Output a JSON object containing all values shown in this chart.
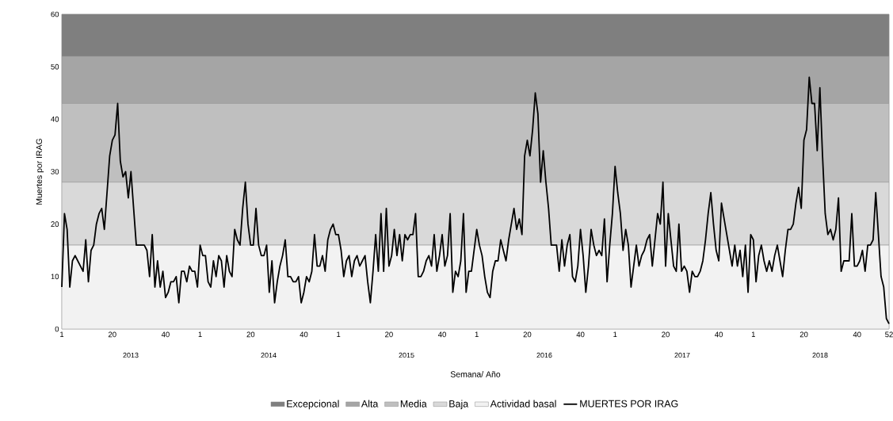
{
  "chart_data": {
    "type": "line",
    "xlabel": "Semana/ Año",
    "ylabel": "Muertes por IRAG",
    "categories": [
      "1",
      null,
      null,
      null,
      null,
      null,
      null,
      null,
      null,
      null,
      null,
      null,
      null,
      null,
      null,
      null,
      null,
      null,
      null,
      "20",
      null,
      null,
      null,
      null,
      null,
      null,
      null,
      null,
      null,
      null,
      null,
      null,
      null,
      null,
      null,
      null,
      null,
      null,
      null,
      "40",
      null,
      null,
      null,
      null,
      null,
      null,
      null,
      null,
      null,
      null,
      null,
      null,
      "1",
      null,
      null,
      null,
      null,
      null,
      null,
      null,
      null,
      null,
      null,
      null,
      null,
      null,
      null,
      null,
      null,
      null,
      null,
      "20",
      null,
      null,
      null,
      null,
      null,
      null,
      null,
      null,
      null,
      null,
      null,
      null,
      null,
      null,
      null,
      null,
      null,
      null,
      null,
      "40",
      null,
      null,
      null,
      null,
      null,
      null,
      null,
      null,
      null,
      null,
      null,
      null,
      "1",
      null,
      null,
      null,
      null,
      null,
      null,
      null,
      null,
      null,
      null,
      null,
      null,
      null,
      null,
      null,
      null,
      null,
      null,
      "20",
      null,
      null,
      null,
      null,
      null,
      null,
      null,
      null,
      null,
      null,
      null,
      null,
      null,
      null,
      null,
      null,
      null,
      null,
      null,
      "40",
      null,
      null,
      null,
      null,
      null,
      null,
      null,
      null,
      null,
      null,
      null,
      null,
      "1",
      null,
      null,
      null,
      null,
      null,
      null,
      null,
      null,
      null,
      null,
      null,
      null,
      null,
      null,
      null,
      null,
      null,
      null,
      "20",
      null,
      null,
      null,
      null,
      null,
      null,
      null,
      null,
      null,
      null,
      null,
      null,
      null,
      null,
      null,
      null,
      null,
      null,
      null,
      "40",
      null,
      null,
      null,
      null,
      null,
      null,
      null,
      null,
      null,
      null,
      null,
      null,
      "1",
      null,
      null,
      null,
      null,
      null,
      null,
      null,
      null,
      null,
      null,
      null,
      null,
      null,
      null,
      null,
      null,
      null,
      null,
      "20",
      null,
      null,
      null,
      null,
      null,
      null,
      null,
      null,
      null,
      null,
      null,
      null,
      null,
      null,
      null,
      null,
      null,
      null,
      null,
      "40",
      null,
      null,
      null,
      null,
      null,
      null,
      null,
      null,
      null,
      null,
      null,
      null,
      "1",
      null,
      null,
      null,
      null,
      null,
      null,
      null,
      null,
      null,
      null,
      null,
      null,
      null,
      null,
      null,
      null,
      null,
      null,
      "20",
      null,
      null,
      null,
      null,
      null,
      null,
      null,
      null,
      null,
      null,
      null,
      null,
      null,
      null,
      null,
      null,
      null,
      null,
      null,
      "40",
      null,
      null,
      null,
      null,
      null,
      null,
      null,
      null,
      null,
      null,
      null,
      "52"
    ],
    "series": [
      {
        "name": "MUERTES POR IRAG",
        "color": "#000000",
        "values": [
          8,
          22,
          19,
          8,
          13,
          14,
          13,
          12,
          11,
          17,
          9,
          15,
          16,
          20,
          22,
          23,
          19,
          26,
          33,
          36,
          37,
          43,
          32,
          29,
          30,
          25,
          30,
          23,
          16,
          16,
          16,
          16,
          15,
          10,
          18,
          8,
          13,
          8,
          11,
          6,
          7,
          9,
          9,
          10,
          5,
          11,
          11,
          9,
          12,
          11,
          11,
          8,
          16,
          14,
          14,
          9,
          8,
          13,
          10,
          14,
          13,
          8,
          14,
          11,
          10,
          19,
          17,
          16,
          23,
          28,
          20,
          16,
          16,
          23,
          16,
          14,
          14,
          16,
          7,
          13,
          5,
          9,
          12,
          14,
          17,
          10,
          10,
          9,
          9,
          10,
          5,
          7,
          10,
          9,
          11,
          18,
          12,
          12,
          14,
          11,
          17,
          19,
          20,
          18,
          18,
          15,
          10,
          13,
          14,
          10,
          13,
          14,
          12,
          13,
          14,
          9,
          5,
          11,
          18,
          11,
          22,
          11,
          23,
          12,
          14,
          19,
          14,
          18,
          13,
          18,
          17,
          18,
          18,
          22,
          10,
          10,
          11,
          13,
          14,
          12,
          18,
          11,
          14,
          18,
          12,
          14,
          22,
          7,
          11,
          10,
          13,
          22,
          7,
          11,
          11,
          15,
          19,
          16,
          14,
          10,
          7,
          6,
          11,
          13,
          13,
          17,
          15,
          13,
          17,
          20,
          23,
          19,
          21,
          18,
          33,
          36,
          33,
          38,
          45,
          41,
          28,
          34,
          28,
          23,
          16,
          16,
          16,
          11,
          17,
          12,
          16,
          18,
          10,
          9,
          12,
          19,
          14,
          7,
          12,
          19,
          16,
          14,
          15,
          14,
          21,
          9,
          16,
          22,
          31,
          26,
          22,
          15,
          19,
          16,
          8,
          12,
          16,
          12,
          14,
          15,
          17,
          18,
          12,
          17,
          22,
          20,
          28,
          12,
          22,
          17,
          12,
          11,
          20,
          11,
          12,
          11,
          7,
          11,
          10,
          10,
          11,
          13,
          17,
          22,
          26,
          20,
          15,
          13,
          24,
          21,
          18,
          15,
          12,
          16,
          12,
          15,
          10,
          16,
          7,
          18,
          17,
          9,
          14,
          16,
          13,
          11,
          13,
          11,
          14,
          16,
          13,
          10,
          15,
          19,
          19,
          20,
          24,
          27,
          23,
          36,
          38,
          48,
          43,
          43,
          34,
          46,
          33,
          22,
          18,
          19,
          17,
          19,
          25,
          11,
          13,
          13,
          13,
          22,
          12,
          12,
          13,
          15,
          11,
          16,
          16,
          17,
          26,
          18,
          10,
          8,
          2,
          1
        ]
      }
    ],
    "ylim": [
      0,
      60
    ],
    "yticks": [
      0,
      10,
      20,
      30,
      40,
      50,
      60
    ],
    "bands": [
      {
        "axis": "y",
        "from": 52,
        "to": 60,
        "label": "Excepcional",
        "color": "#7f7f7f"
      },
      {
        "axis": "y",
        "from": 43,
        "to": 52,
        "label": "Alta",
        "color": "#a5a5a5"
      },
      {
        "axis": "y",
        "from": 28,
        "to": 43,
        "label": "Media",
        "color": "#bfbfbf"
      },
      {
        "axis": "y",
        "from": 16,
        "to": 28,
        "label": "Baja",
        "color": "#d9d9d9"
      },
      {
        "axis": "y",
        "from": 0,
        "to": 16,
        "label": "Actividad basal",
        "color": "#f2f2f2"
      }
    ],
    "annotations": [
      "2013",
      "2014",
      "2015",
      "2016",
      "2017",
      "2018"
    ],
    "legend": "bottom",
    "grid": false,
    "marker": "none",
    "line_style": "solid"
  }
}
